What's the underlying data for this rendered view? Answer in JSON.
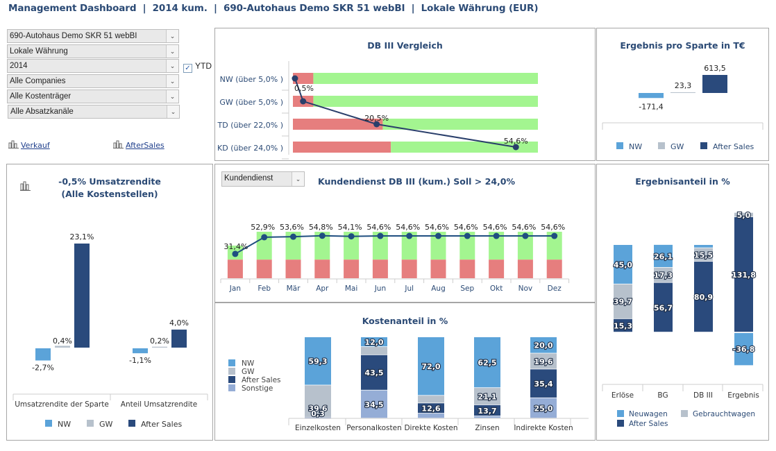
{
  "header": {
    "title": "Management Dashboard  |  2014 kum.  |  690-Autohaus Demo SKR 51 webBI  |  Lokale Währung (EUR)"
  },
  "filters": {
    "selects": [
      {
        "name": "company-select",
        "value": "690-Autohaus Demo SKR 51 webBI"
      },
      {
        "name": "currency-select",
        "value": "Lokale Währung"
      },
      {
        "name": "year-select",
        "value": "2014"
      },
      {
        "name": "companies-select",
        "value": "Alle Companies"
      },
      {
        "name": "kostentraeger-select",
        "value": "Alle Kostenträger"
      },
      {
        "name": "absatzkanal-select",
        "value": "Alle Absatzkanäle"
      }
    ],
    "ytd": {
      "label": "YTD",
      "checked": true,
      "check_glyph": "✓"
    },
    "links": [
      {
        "label": "Verkauf",
        "icon": "bar-chart-icon"
      },
      {
        "label": "AfterSales",
        "icon": "bar-chart-icon"
      }
    ],
    "dropdown_glyph": "⌄"
  },
  "colors": {
    "nw": "#5ba3d9",
    "gw": "#b7c1cc",
    "after_sales": "#2a4a7c",
    "sonstige": "#95add6",
    "green": "#a3f590",
    "red": "#e67e7e",
    "line": "#2a3f6b",
    "title": "#2b4a75"
  },
  "chart_data": [
    {
      "id": "db3-vergleich",
      "type": "bar",
      "title": "DB III Vergleich",
      "orientation": "horizontal",
      "categories": [
        "NW (über 5,0% )",
        "GW (über 5,0% )",
        "TD (über 22,0% )",
        "KD (über 24,0% )"
      ],
      "targets": [
        5.0,
        5.0,
        22.0,
        24.0
      ],
      "values": [
        0.5,
        2.5,
        20.5,
        54.6
      ],
      "value_labels": [
        "0,5%",
        "",
        "20,5%",
        "54,6%"
      ],
      "xlim": [
        0,
        60
      ],
      "series": [
        {
          "name": "below-target",
          "color": "red"
        },
        {
          "name": "above-target",
          "color": "green"
        },
        {
          "name": "DB III",
          "type": "line"
        }
      ]
    },
    {
      "id": "ergebnis-pro-sparte",
      "type": "bar",
      "title": "Ergebnis pro Sparte in T€",
      "categories": [
        "NW",
        "GW",
        "After Sales"
      ],
      "values": [
        -171.4,
        23.3,
        613.5
      ],
      "value_labels": [
        "-171,4",
        "23,3",
        "613,5"
      ],
      "legend": [
        "NW",
        "GW",
        "After Sales"
      ],
      "legend_position": "bottom"
    },
    {
      "id": "umsatzrendite",
      "type": "bar",
      "title": "-0,5% Umsatzrendite (Alle Kostenstellen)",
      "categories": [
        "Umsatzrendite der Sparte",
        "Anteil Umsatzrendite"
      ],
      "series": [
        {
          "name": "NW",
          "values": [
            -2.7,
            -1.1
          ],
          "labels": [
            "-2,7%",
            "-1,1%"
          ]
        },
        {
          "name": "GW",
          "values": [
            0.4,
            0.2
          ],
          "labels": [
            "0,4%",
            "0,2%"
          ]
        },
        {
          "name": "After Sales",
          "values": [
            23.1,
            4.0
          ],
          "labels": [
            "23,1%",
            "4,0%"
          ]
        }
      ],
      "legend_position": "bottom"
    },
    {
      "id": "kundendienst-db3",
      "type": "bar",
      "title": "Kundendienst DB III (kum.) Soll > 24,0%",
      "dropdown_value": "Kundendienst",
      "categories": [
        "Jan",
        "Feb",
        "Mär",
        "Apr",
        "Mai",
        "Jun",
        "Jul",
        "Aug",
        "Sep",
        "Okt",
        "Nov",
        "Dez"
      ],
      "target": 24.0,
      "values": [
        31.4,
        52.9,
        53.6,
        54.8,
        54.1,
        54.6,
        54.6,
        54.6,
        54.6,
        54.6,
        54.6,
        54.6
      ],
      "value_labels": [
        "31,4%",
        "52,9%",
        "53,6%",
        "54,8%",
        "54,1%",
        "54,6%",
        "54,6%",
        "54,6%",
        "54,6%",
        "54,6%",
        "54,6%",
        "54,6%"
      ],
      "ylim": [
        0,
        60
      ]
    },
    {
      "id": "kostenanteil",
      "type": "bar",
      "stacked": true,
      "title": "Kostenanteil in %",
      "categories": [
        "Einzelkosten",
        "Personalkosten",
        "Direkte Kosten",
        "Zinsen",
        "Indirekte Kosten"
      ],
      "series": [
        {
          "name": "NW",
          "values": [
            59.3,
            12.0,
            72.0,
            62.5,
            20.0
          ],
          "labels": [
            "59,3",
            "12,0",
            "72,0",
            "62,5",
            "20,0"
          ]
        },
        {
          "name": "GW",
          "values": [
            39.6,
            10.0,
            9.4,
            21.1,
            19.6
          ],
          "labels": [
            "39,6",
            "",
            "",
            "21,1",
            "19,6"
          ]
        },
        {
          "name": "After Sales",
          "values": [
            0.3,
            43.5,
            12.6,
            13.7,
            35.4
          ],
          "labels": [
            "0,3",
            "43,5",
            "12,6",
            "13,7",
            "35,4"
          ]
        },
        {
          "name": "Sonstige",
          "values": [
            0.8,
            34.5,
            6.0,
            2.7,
            25.0
          ],
          "labels": [
            "",
            "34,5",
            "",
            "",
            "25,0"
          ]
        }
      ],
      "legend_position": "left"
    },
    {
      "id": "ergebnisanteil",
      "type": "bar",
      "stacked": true,
      "title": "Ergebnisanteil in %",
      "categories": [
        "Erlöse",
        "BG",
        "DB III",
        "Ergebnis"
      ],
      "series": [
        {
          "name": "Neuwagen",
          "values": [
            45.0,
            26.1,
            3.6,
            -36.8
          ],
          "labels": [
            "45,0",
            "26,1",
            "",
            "-36,8"
          ]
        },
        {
          "name": "Gebrauchtwagen",
          "values": [
            39.7,
            17.3,
            15.5,
            5.0
          ],
          "labels": [
            "39,7",
            "17,3",
            "15,5",
            "5,0"
          ]
        },
        {
          "name": "After Sales",
          "values": [
            15.3,
            56.7,
            80.9,
            131.8
          ],
          "labels": [
            "15,3",
            "56,7",
            "80,9",
            "131,8"
          ]
        }
      ],
      "legend": [
        "Neuwagen",
        "Gebrauchtwagen",
        "After Sales"
      ],
      "legend_position": "bottom"
    }
  ]
}
